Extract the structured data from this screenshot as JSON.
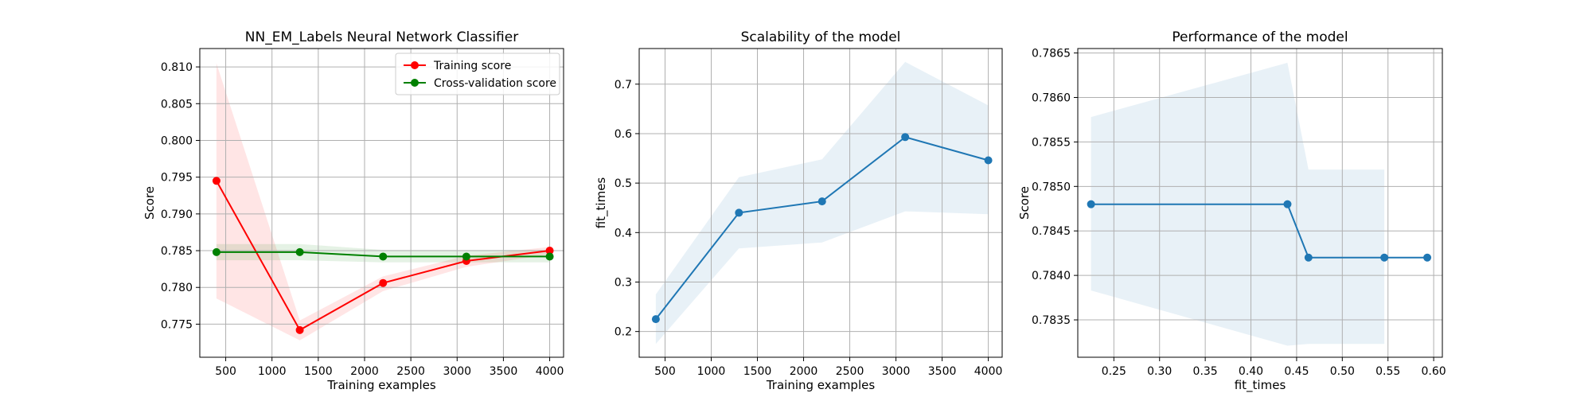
{
  "chart_data": [
    {
      "type": "line",
      "title": "NN_EM_Labels Neural Network Classifier",
      "xlabel": "Training examples",
      "ylabel": "Score",
      "xlim": [
        220,
        4150
      ],
      "ylim": [
        0.7705,
        0.8125
      ],
      "xticks": [
        500,
        1000,
        1500,
        2000,
        2500,
        3000,
        3500,
        4000
      ],
      "xtick_labels": [
        "500",
        "1000",
        "1500",
        "2000",
        "2500",
        "3000",
        "3500",
        "4000"
      ],
      "yticks": [
        0.775,
        0.78,
        0.785,
        0.79,
        0.795,
        0.8,
        0.805,
        0.81
      ],
      "ytick_labels": [
        "0.775",
        "0.780",
        "0.785",
        "0.790",
        "0.795",
        "0.800",
        "0.805",
        "0.810"
      ],
      "grid": true,
      "legend_position": "top-right",
      "x": [
        400,
        1300,
        2200,
        3100,
        4000
      ],
      "series": [
        {
          "name": "Training score",
          "color": "#ff0000",
          "band_color": "#ff0000",
          "values": [
            0.7945,
            0.7742,
            0.7806,
            0.7836,
            0.785
          ],
          "band_lower": [
            0.7785,
            0.7728,
            0.7795,
            0.7828,
            0.7845
          ],
          "band_upper": [
            0.8105,
            0.7755,
            0.7815,
            0.7843,
            0.7855
          ]
        },
        {
          "name": "Cross-validation score",
          "color": "#008000",
          "band_color": "#008000",
          "values": [
            0.7848,
            0.7848,
            0.7842,
            0.7842,
            0.7842
          ],
          "band_lower": [
            0.7837,
            0.7837,
            0.7834,
            0.7834,
            0.7834
          ],
          "band_upper": [
            0.7859,
            0.7859,
            0.7851,
            0.7851,
            0.7851
          ]
        }
      ]
    },
    {
      "type": "line",
      "title": "Scalability of the model",
      "xlabel": "Training examples",
      "ylabel": "fit_times",
      "xlim": [
        220,
        4150
      ],
      "ylim": [
        0.148,
        0.772
      ],
      "xticks": [
        500,
        1000,
        1500,
        2000,
        2500,
        3000,
        3500,
        4000
      ],
      "xtick_labels": [
        "500",
        "1000",
        "1500",
        "2000",
        "2500",
        "3000",
        "3500",
        "4000"
      ],
      "yticks": [
        0.2,
        0.3,
        0.4,
        0.5,
        0.6,
        0.7
      ],
      "ytick_labels": [
        "0.2",
        "0.3",
        "0.4",
        "0.5",
        "0.6",
        "0.7"
      ],
      "grid": true,
      "x": [
        400,
        1300,
        2200,
        3100,
        4000
      ],
      "series": [
        {
          "color": "#1f77b4",
          "band_color": "#1f77b4",
          "values": [
            0.225,
            0.44,
            0.463,
            0.593,
            0.546
          ],
          "band_lower": [
            0.175,
            0.368,
            0.38,
            0.443,
            0.437
          ],
          "band_upper": [
            0.275,
            0.512,
            0.548,
            0.745,
            0.657
          ]
        }
      ]
    },
    {
      "type": "line",
      "title": "Performance of the model",
      "xlabel": "fit_times",
      "ylabel": "Score",
      "xlim": [
        0.2105,
        0.6095
      ],
      "ylim": [
        0.78308,
        0.78655
      ],
      "xticks": [
        0.25,
        0.3,
        0.35,
        0.4,
        0.45,
        0.5,
        0.55,
        0.6
      ],
      "xtick_labels": [
        "0.25",
        "0.30",
        "0.35",
        "0.40",
        "0.45",
        "0.50",
        "0.55",
        "0.60"
      ],
      "yticks": [
        0.7835,
        0.784,
        0.7845,
        0.785,
        0.7855,
        0.786,
        0.7865
      ],
      "ytick_labels": [
        "0.7835",
        "0.7840",
        "0.7845",
        "0.7850",
        "0.7855",
        "0.7860",
        "0.7865"
      ],
      "grid": true,
      "series": [
        {
          "color": "#1f77b4",
          "band_color": "#1f77b4",
          "x": [
            0.225,
            0.44,
            0.463,
            0.546,
            0.593
          ],
          "values": [
            0.7848,
            0.7848,
            0.7842,
            0.7842,
            0.7842
          ],
          "band_x": [
            0.225,
            0.44,
            0.463,
            0.546
          ],
          "band_lower": [
            0.78383,
            0.78321,
            0.78323,
            0.78323
          ],
          "band_upper": [
            0.78578,
            0.78639,
            0.78519,
            0.78519
          ]
        }
      ]
    }
  ]
}
